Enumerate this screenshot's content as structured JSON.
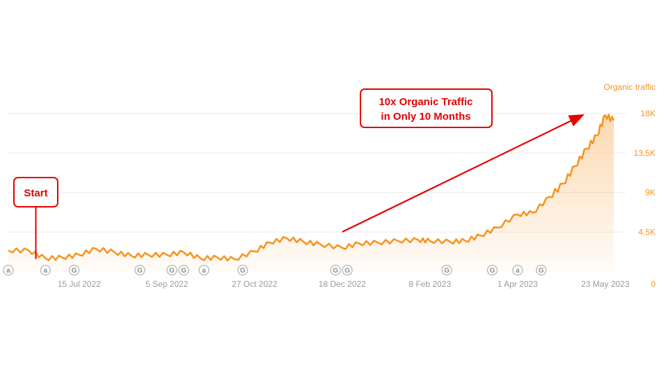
{
  "chart_data": {
    "type": "area",
    "series": [
      {
        "name": "Organic traffic",
        "color": "#f7931e",
        "x": [
          "2022-06-03",
          "2022-06-15",
          "2022-06-25",
          "2022-07-05",
          "2022-07-15",
          "2022-07-25",
          "2022-08-05",
          "2022-08-15",
          "2022-08-25",
          "2022-09-05",
          "2022-09-15",
          "2022-09-25",
          "2022-10-05",
          "2022-10-15",
          "2022-10-27",
          "2022-11-05",
          "2022-11-15",
          "2022-11-25",
          "2022-12-05",
          "2022-12-18",
          "2022-12-28",
          "2023-01-08",
          "2023-01-20",
          "2023-02-01",
          "2023-02-08",
          "2023-02-20",
          "2023-03-01",
          "2023-03-10",
          "2023-03-20",
          "2023-04-01",
          "2023-04-10",
          "2023-04-20",
          "2023-04-28",
          "2023-05-05",
          "2023-05-12",
          "2023-05-18",
          "2023-05-23",
          "2023-05-28"
        ],
        "values": [
          2400,
          2400,
          1500,
          1600,
          1900,
          2600,
          2200,
          1800,
          1900,
          1900,
          2200,
          1500,
          1600,
          1400,
          2300,
          3300,
          3800,
          3400,
          3100,
          2700,
          3200,
          3300,
          3500,
          3600,
          3500,
          3400,
          3500,
          4100,
          5000,
          6500,
          6700,
          8500,
          10000,
          12000,
          14000,
          15500,
          17800,
          17200
        ]
      }
    ],
    "x_ticks": [
      "15 Jul 2022",
      "5 Sep 2022",
      "27 Oct 2022",
      "18 Dec 2022",
      "8 Feb 2023",
      "1 Apr 2023",
      "23 May 2023"
    ],
    "y_ticks": [
      "0",
      "4.5K",
      "9K",
      "13.5K",
      "18K"
    ],
    "y_tick_values": [
      0,
      4500,
      9000,
      13500,
      18000
    ],
    "ylabel": "Organic traffic",
    "ylim": [
      0,
      18000
    ],
    "grid": true,
    "markers": [
      {
        "date": "2022-06-03",
        "letter": "a"
      },
      {
        "date": "2022-06-25",
        "letter": "a"
      },
      {
        "date": "2022-07-12",
        "letter": "G"
      },
      {
        "date": "2022-08-20",
        "letter": "G"
      },
      {
        "date": "2022-09-08",
        "letter": "G"
      },
      {
        "date": "2022-09-15",
        "letter": "G"
      },
      {
        "date": "2022-09-27",
        "letter": "a"
      },
      {
        "date": "2022-10-20",
        "letter": "G"
      },
      {
        "date": "2022-12-14",
        "letter": "G"
      },
      {
        "date": "2022-12-21",
        "letter": "G"
      },
      {
        "date": "2023-02-18",
        "letter": "G"
      },
      {
        "date": "2023-03-17",
        "letter": "G"
      },
      {
        "date": "2023-04-01",
        "letter": "a"
      },
      {
        "date": "2023-04-15",
        "letter": "G"
      }
    ],
    "annotations": [
      {
        "text": "Start",
        "date": "2022-07-03"
      },
      {
        "text": "10x Organic Traffic",
        "text2": "in Only 10 Months"
      }
    ]
  },
  "colors": {
    "line": "#f7931e",
    "accent": "#e60000",
    "grid": "#eeeeee"
  }
}
